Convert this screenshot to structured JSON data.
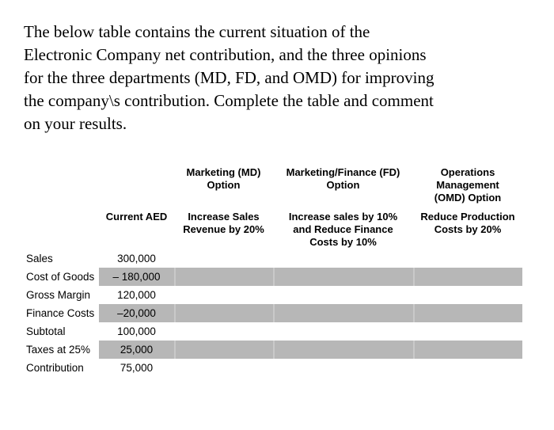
{
  "intro": {
    "text": "The below table contains the current situation of the\nElectronic Company net contribution, and the three opinions\nfor the three departments (MD, FD, and OMD) for improving\nthe company\\s contribution. Complete the table and comment\non your results."
  },
  "table": {
    "option_headers": [
      "Marketing (MD)\nOption",
      "Marketing/Finance (FD)\nOption",
      "Operations\nManagement\n(OMD) Option"
    ],
    "column_headers": [
      "Current AED",
      "Increase Sales\nRevenue by 20%",
      "Increase sales by 10%\nand Reduce Finance\nCosts by 10%",
      "Reduce Production\nCosts by 20%"
    ],
    "rows": [
      {
        "label": "Sales",
        "current": "300,000",
        "md": "",
        "fd": "",
        "omd": "",
        "shaded": false
      },
      {
        "label": "Cost of Goods",
        "current": "– 180,000",
        "md": "",
        "fd": "",
        "omd": "",
        "shaded": true
      },
      {
        "label": "Gross Margin",
        "current": "120,000",
        "md": "",
        "fd": "",
        "omd": "",
        "shaded": false
      },
      {
        "label": "Finance Costs",
        "current": "–20,000",
        "md": "",
        "fd": "",
        "omd": "",
        "shaded": true
      },
      {
        "label": "Subtotal",
        "current": "100,000",
        "md": "",
        "fd": "",
        "omd": "",
        "shaded": false
      },
      {
        "label": "Taxes at 25%",
        "current": "25,000",
        "md": "",
        "fd": "",
        "omd": "",
        "shaded": true
      },
      {
        "label": "Contribution",
        "current": "75,000",
        "md": "",
        "fd": "",
        "omd": "",
        "shaded": false
      }
    ],
    "row_shade_color": "#b7b7b7",
    "text_color": "#000000",
    "background_color": "#ffffff"
  }
}
